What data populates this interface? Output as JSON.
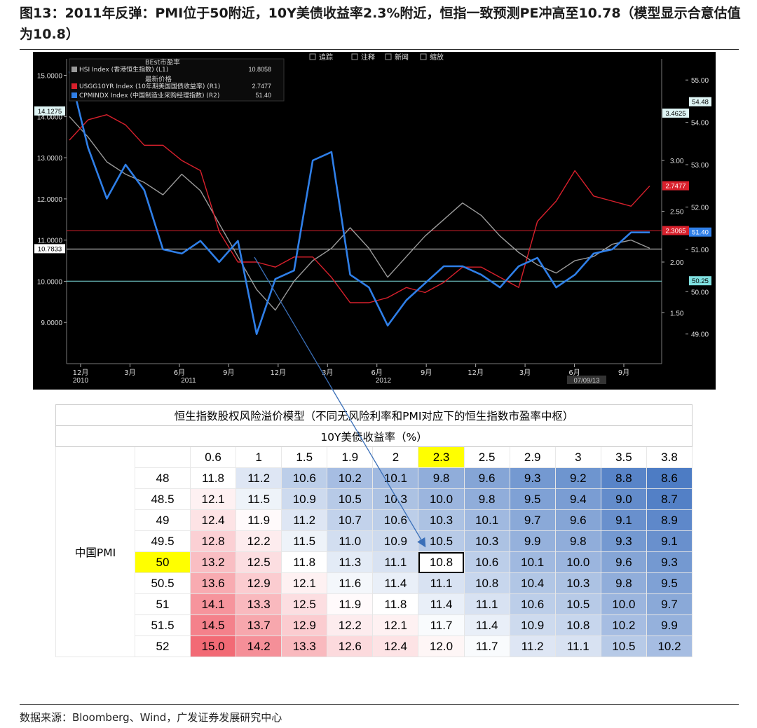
{
  "figure": {
    "title": "图13：2011年反弹：PMI位于50附近，10Y美债收益率2.3%附近，恒指一致预测PE冲高至10.78（模型显示合意估值为10.8）",
    "source": "数据来源：Bloomberg、Wind，广发证券发展研究中心"
  },
  "terminal": {
    "toolbar": [
      "追踪",
      "注释",
      "新闻",
      "缩放"
    ],
    "toolbar_icons": [
      "crosshair-icon",
      "annotate-icon",
      "news-icon",
      "zoom-icon"
    ],
    "legend_header": "BEst市盈率",
    "legend_sub": "最新价格",
    "date_tag": "07/09/13",
    "left_badges": [
      "14.1275",
      "10.7833"
    ],
    "right_badges": [
      "3.4625",
      "2.7477",
      "2.3065",
      "54.48",
      "51.40",
      "50.25"
    ]
  },
  "colors": {
    "background": "#000000",
    "hsi": "#9a9a9a",
    "ust10y": "#d8202c",
    "pmi": "#2f7fe8",
    "hline_white": "#e8e8e8",
    "hline_red": "#d8202c",
    "hline_cyan": "#7fe0e0",
    "table_high": "#f26a75",
    "table_mid": "#ffffff",
    "table_low": "#4d7cc4",
    "highlight": "#ffff00"
  },
  "chart_data": [
    {
      "type": "line",
      "x_ticks": [
        "12月",
        "3月",
        "6月",
        "9月",
        "12月",
        "3月",
        "6月",
        "9月",
        "12月",
        "3月",
        "6月",
        "9月"
      ],
      "x_year_labels": [
        "2010",
        "2011",
        "2012"
      ],
      "y_left_ticks": [
        "15.0000",
        "14.0000",
        "13.0000",
        "12.0000",
        "11.0000",
        "10.0000",
        "9.0000"
      ],
      "y_right1_ticks": [
        "3.00",
        "2.50",
        "2.00",
        "1.50"
      ],
      "y_right2_ticks": [
        "55.00",
        "54.00",
        "53.00",
        "52.00",
        "51.00",
        "50.00",
        "49.00"
      ],
      "ylim_left": [
        8.0,
        15.4
      ],
      "ylim_right1": [
        1.0,
        4.0
      ],
      "ylim_right2": [
        48.3,
        55.5
      ],
      "series": [
        {
          "name": "HSI Index (香港恒生指数) (L1)",
          "last": "10.8058",
          "axis": "L1",
          "values": [
            14.0,
            13.5,
            12.9,
            12.6,
            12.4,
            12.1,
            12.6,
            12.2,
            11.4,
            10.6,
            9.8,
            9.3,
            10.0,
            10.5,
            10.8,
            11.3,
            10.8,
            10.1,
            10.6,
            11.1,
            11.5,
            11.9,
            11.6,
            11.1,
            10.7,
            10.4,
            10.2,
            10.5,
            10.6,
            10.9,
            11.0,
            10.8
          ],
          "color_key": "hsi"
        },
        {
          "name": "USGG10YR Index (10年期美国国债收益率) (R1)",
          "last": "2.7477",
          "axis": "R1",
          "values": [
            3.2,
            3.4,
            3.45,
            3.35,
            3.15,
            3.15,
            3.0,
            2.9,
            2.3,
            2.0,
            2.0,
            1.95,
            2.05,
            2.05,
            1.85,
            1.6,
            1.6,
            1.65,
            1.75,
            1.7,
            1.8,
            1.95,
            1.95,
            1.85,
            1.75,
            2.4,
            2.6,
            2.9,
            2.65,
            2.6,
            2.55,
            2.75
          ],
          "color_key": "ust10y"
        },
        {
          "name": "CPMINDX Index (中国制造业采购经理指数) (R2)",
          "last": "51.40",
          "axis": "R2",
          "values": [
            55.2,
            53.4,
            52.2,
            53.0,
            52.4,
            51.0,
            50.9,
            51.2,
            50.7,
            51.2,
            49.0,
            50.3,
            50.5,
            53.1,
            53.3,
            50.4,
            50.1,
            49.2,
            49.8,
            50.2,
            50.6,
            50.6,
            50.4,
            50.1,
            50.6,
            50.8,
            50.1,
            50.4,
            50.9,
            51.0,
            51.4,
            51.4
          ]
        }
      ],
      "hlines": {
        "left_white": 10.7833,
        "right1_red": 2.3065,
        "right2_cyan": 50.25
      }
    },
    {
      "type": "heatmap",
      "title": "恒生指数股权风险溢价模型（不同无风险利率和PMI对应下的恒生指数市盈率中枢）",
      "col_axis_label": "10Y美债收益率（%）",
      "row_axis_label": "中国PMI",
      "columns": [
        "0.6",
        "1",
        "1.5",
        "1.9",
        "2",
        "2.3",
        "2.5",
        "2.9",
        "3",
        "3.5",
        "3.8"
      ],
      "rows": [
        "48",
        "48.5",
        "49",
        "49.5",
        "50",
        "50.5",
        "51",
        "51.5",
        "52"
      ],
      "values": [
        [
          "11.8",
          "11.2",
          "10.6",
          "10.2",
          "10.1",
          "9.8",
          "9.6",
          "9.3",
          "9.2",
          "8.8",
          "8.6"
        ],
        [
          "12.1",
          "11.5",
          "10.9",
          "10.5",
          "10.3",
          "10.0",
          "9.8",
          "9.5",
          "9.4",
          "9.0",
          "8.7"
        ],
        [
          "12.4",
          "11.9",
          "11.2",
          "10.7",
          "10.6",
          "10.3",
          "10.1",
          "9.7",
          "9.6",
          "9.1",
          "8.9"
        ],
        [
          "12.8",
          "12.2",
          "11.5",
          "11.0",
          "10.9",
          "10.5",
          "10.3",
          "9.9",
          "9.8",
          "9.3",
          "9.1"
        ],
        [
          "13.2",
          "12.5",
          "11.8",
          "11.3",
          "11.1",
          "10.8",
          "10.6",
          "10.1",
          "10.0",
          "9.6",
          "9.3"
        ],
        [
          "13.6",
          "12.9",
          "12.1",
          "11.6",
          "11.4",
          "11.1",
          "10.8",
          "10.4",
          "10.3",
          "9.8",
          "9.5"
        ],
        [
          "14.1",
          "13.3",
          "12.5",
          "11.9",
          "11.8",
          "11.4",
          "11.1",
          "10.6",
          "10.5",
          "10.0",
          "9.7"
        ],
        [
          "14.5",
          "13.7",
          "12.9",
          "12.2",
          "12.1",
          "11.7",
          "11.4",
          "10.9",
          "10.8",
          "10.2",
          "9.9"
        ],
        [
          "15.0",
          "14.2",
          "13.3",
          "12.6",
          "12.4",
          "12.0",
          "11.7",
          "11.2",
          "11.1",
          "10.5",
          "10.2"
        ]
      ],
      "highlight_row": "50",
      "highlight_col": "2.3",
      "boxed_value": "10.8"
    }
  ]
}
